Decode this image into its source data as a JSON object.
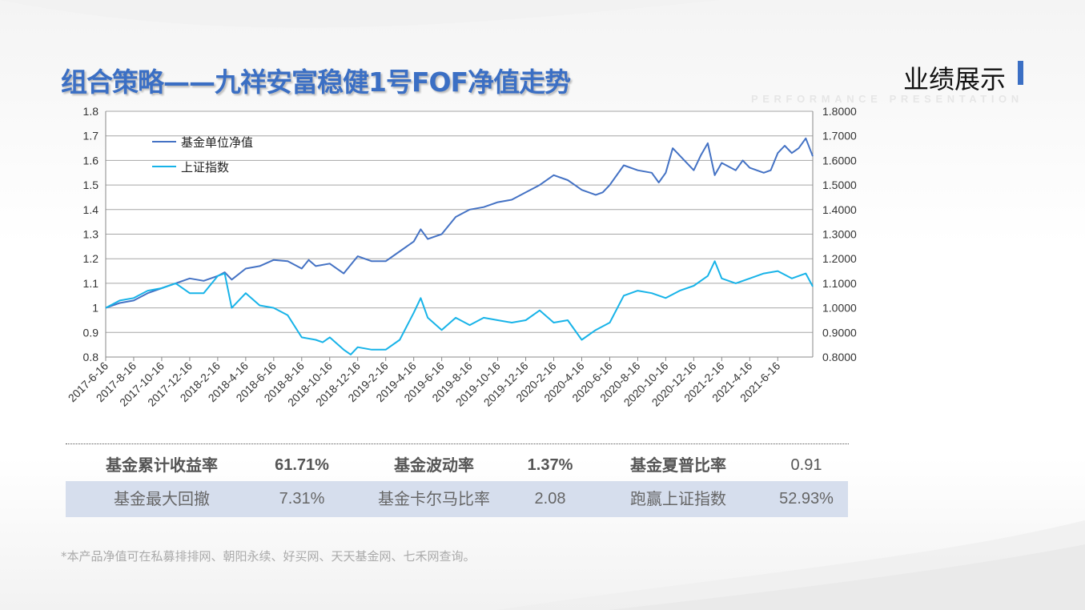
{
  "title": "组合策略——九祥安富稳健1号FOF净值走势",
  "section": {
    "title": "业绩展示",
    "subtitle": "PERFORMANCE PRESENTATION"
  },
  "metrics": {
    "row1": [
      {
        "label": "基金累计收益率",
        "value": "61.71%"
      },
      {
        "label": "基金波动率",
        "value": "1.37%"
      },
      {
        "label": "基金夏普比率",
        "value": "0.91"
      }
    ],
    "row2": [
      {
        "label": "基金最大回撤",
        "value": "7.31%"
      },
      {
        "label": "基金卡尔马比率",
        "value": "2.08"
      },
      {
        "label": "跑赢上证指数",
        "value": "52.93%"
      }
    ]
  },
  "footnote": "*本产品净值可在私募排排网、朝阳永续、好买网、天天基金网、七禾网查询。",
  "colors": {
    "fund": "#4472c4",
    "index": "#17b3e8",
    "title": "#3b6fc4",
    "table_band": "#d6deed"
  },
  "chart_data": {
    "type": "line",
    "title": "",
    "xlabel": "",
    "ylabel": "",
    "ylim": [
      0.8,
      1.8
    ],
    "y_ticks_left": [
      "0.8",
      "0.9",
      "1",
      "1.1",
      "1.2",
      "1.3",
      "1.4",
      "1.5",
      "1.6",
      "1.7",
      "1.8"
    ],
    "y_ticks_right": [
      "0.8000",
      "0.9000",
      "1.0000",
      "1.1000",
      "1.2000",
      "1.3000",
      "1.4000",
      "1.5000",
      "1.6000",
      "1.7000",
      "1.8000"
    ],
    "x_ticks": [
      "2017-6-16",
      "2017-8-16",
      "2017-10-16",
      "2017-12-16",
      "2018-2-16",
      "2018-4-16",
      "2018-6-16",
      "2018-8-16",
      "2018-10-16",
      "2018-12-16",
      "2019-2-16",
      "2019-4-16",
      "2019-6-16",
      "2019-8-16",
      "2019-10-16",
      "2019-12-16",
      "2020-2-16",
      "2020-4-16",
      "2020-6-16",
      "2020-8-16",
      "2020-10-16",
      "2020-12-16",
      "2021-2-16",
      "2021-4-16",
      "2021-6-16"
    ],
    "legend_position": "top-left",
    "grid": true,
    "x_range": [
      0,
      50.5
    ],
    "series": [
      {
        "name": "基金单位净值",
        "color": "#4472c4",
        "points": [
          [
            0,
            1.0
          ],
          [
            1,
            1.02
          ],
          [
            2,
            1.03
          ],
          [
            3,
            1.06
          ],
          [
            4,
            1.08
          ],
          [
            5,
            1.1
          ],
          [
            6,
            1.12
          ],
          [
            7,
            1.11
          ],
          [
            8,
            1.13
          ],
          [
            8.5,
            1.145
          ],
          [
            9,
            1.115
          ],
          [
            10,
            1.16
          ],
          [
            11,
            1.17
          ],
          [
            12,
            1.195
          ],
          [
            13,
            1.19
          ],
          [
            14,
            1.16
          ],
          [
            14.5,
            1.195
          ],
          [
            15,
            1.17
          ],
          [
            16,
            1.18
          ],
          [
            17,
            1.14
          ],
          [
            18,
            1.21
          ],
          [
            19,
            1.19
          ],
          [
            20,
            1.19
          ],
          [
            21,
            1.23
          ],
          [
            22,
            1.27
          ],
          [
            22.5,
            1.32
          ],
          [
            23,
            1.28
          ],
          [
            24,
            1.3
          ],
          [
            25,
            1.37
          ],
          [
            26,
            1.4
          ],
          [
            27,
            1.41
          ],
          [
            28,
            1.43
          ],
          [
            29,
            1.44
          ],
          [
            30,
            1.47
          ],
          [
            31,
            1.5
          ],
          [
            32,
            1.54
          ],
          [
            33,
            1.52
          ],
          [
            33.5,
            1.5
          ],
          [
            34,
            1.48
          ],
          [
            35,
            1.46
          ],
          [
            35.5,
            1.47
          ],
          [
            36,
            1.5
          ],
          [
            37,
            1.58
          ],
          [
            38,
            1.56
          ],
          [
            39,
            1.55
          ],
          [
            39.5,
            1.51
          ],
          [
            40,
            1.55
          ],
          [
            40.5,
            1.65
          ],
          [
            41,
            1.62
          ],
          [
            42,
            1.56
          ],
          [
            42.5,
            1.62
          ],
          [
            43,
            1.67
          ],
          [
            43.5,
            1.54
          ],
          [
            44,
            1.59
          ],
          [
            45,
            1.56
          ],
          [
            45.5,
            1.6
          ],
          [
            46,
            1.57
          ],
          [
            47,
            1.55
          ],
          [
            47.5,
            1.56
          ],
          [
            48,
            1.63
          ],
          [
            48.5,
            1.66
          ],
          [
            49,
            1.63
          ],
          [
            49.5,
            1.65
          ],
          [
            50,
            1.69
          ],
          [
            50.5,
            1.617
          ]
        ]
      },
      {
        "name": "上证指数",
        "color": "#17b3e8",
        "points": [
          [
            0,
            1.0
          ],
          [
            1,
            1.03
          ],
          [
            2,
            1.04
          ],
          [
            3,
            1.07
          ],
          [
            4,
            1.08
          ],
          [
            5,
            1.1
          ],
          [
            6,
            1.06
          ],
          [
            7,
            1.06
          ],
          [
            8,
            1.13
          ],
          [
            8.5,
            1.14
          ],
          [
            9,
            1.0
          ],
          [
            10,
            1.06
          ],
          [
            11,
            1.01
          ],
          [
            12,
            1.0
          ],
          [
            13,
            0.97
          ],
          [
            14,
            0.88
          ],
          [
            15,
            0.87
          ],
          [
            15.5,
            0.86
          ],
          [
            16,
            0.88
          ],
          [
            17,
            0.83
          ],
          [
            17.5,
            0.81
          ],
          [
            18,
            0.84
          ],
          [
            19,
            0.83
          ],
          [
            20,
            0.83
          ],
          [
            21,
            0.87
          ],
          [
            22,
            0.98
          ],
          [
            22.5,
            1.04
          ],
          [
            23,
            0.96
          ],
          [
            24,
            0.91
          ],
          [
            25,
            0.96
          ],
          [
            26,
            0.93
          ],
          [
            27,
            0.96
          ],
          [
            28,
            0.95
          ],
          [
            29,
            0.94
          ],
          [
            30,
            0.95
          ],
          [
            31,
            0.99
          ],
          [
            32,
            0.94
          ],
          [
            33,
            0.95
          ],
          [
            34,
            0.87
          ],
          [
            35,
            0.91
          ],
          [
            36,
            0.94
          ],
          [
            37,
            1.05
          ],
          [
            38,
            1.07
          ],
          [
            39,
            1.06
          ],
          [
            40,
            1.04
          ],
          [
            41,
            1.07
          ],
          [
            42,
            1.09
          ],
          [
            43,
            1.13
          ],
          [
            43.5,
            1.19
          ],
          [
            44,
            1.12
          ],
          [
            45,
            1.1
          ],
          [
            46,
            1.12
          ],
          [
            47,
            1.14
          ],
          [
            48,
            1.15
          ],
          [
            49,
            1.12
          ],
          [
            50,
            1.14
          ],
          [
            50.5,
            1.087
          ]
        ]
      }
    ]
  }
}
